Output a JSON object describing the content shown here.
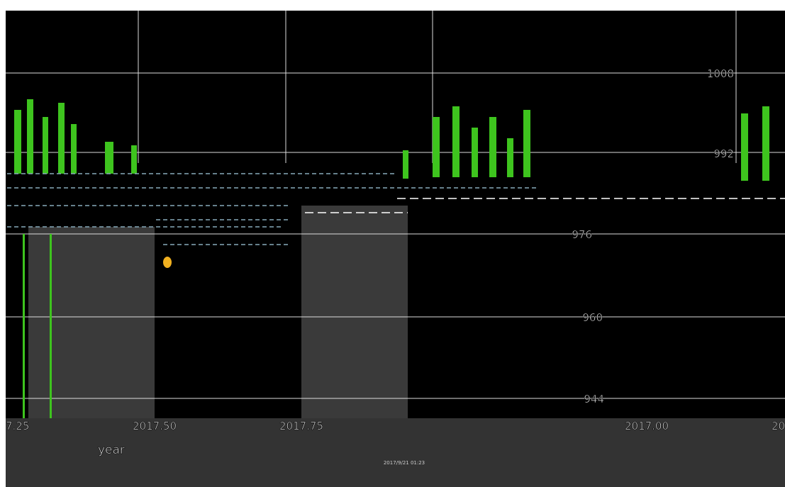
{
  "axis": {
    "x_tick_labels": [
      "7.25",
      "2017.50",
      "2017.75",
      "2017.00",
      "20"
    ],
    "y_tick_labels": [
      "1008",
      "992",
      "976",
      "960",
      "944"
    ],
    "x_label": "year"
  },
  "footer": "2017/9/21 01:23"
}
